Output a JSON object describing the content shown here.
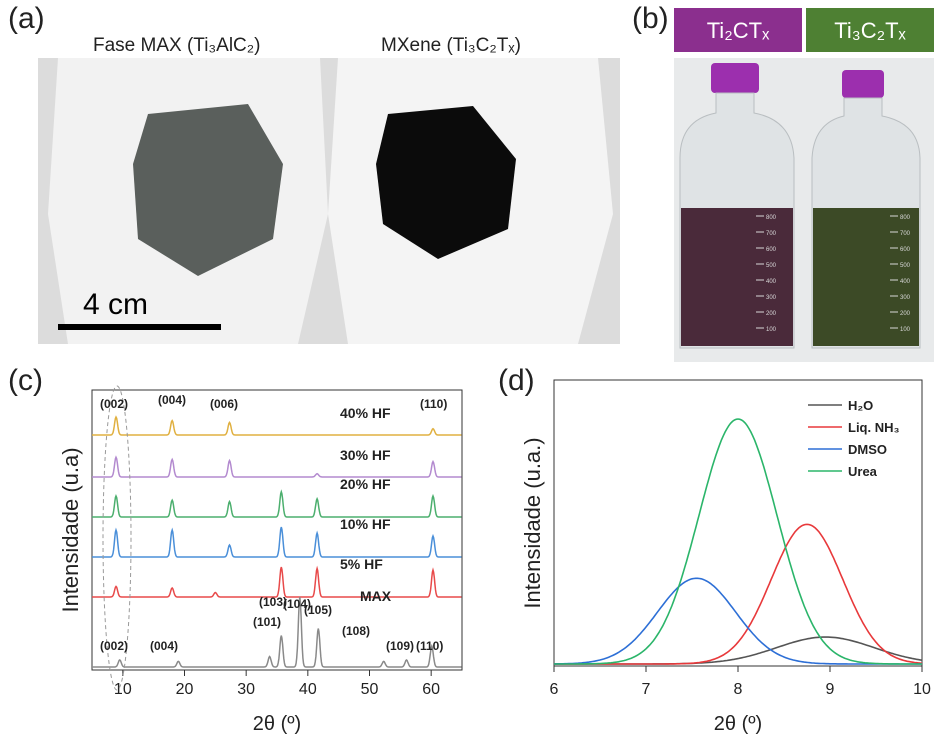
{
  "panel_a": {
    "letter": "(a)",
    "label_max": "Fase MAX (Ti₃AlC₂)",
    "label_mxene": "MXene (Ti₃C₂Tₓ)",
    "scale_bar": "4 cm"
  },
  "panel_b": {
    "letter": "(b)",
    "label_ti2": "Ti₂CTₓ",
    "label_ti3": "Ti₃C₂Tₓ",
    "bottle_marks": [
      "100",
      "200",
      "300",
      "400",
      "500",
      "600",
      "700",
      "800"
    ],
    "colors": {
      "ti2_tab": "#8b2f8e",
      "ti3_tab": "#4e8033",
      "cap": "#9c2fae"
    }
  },
  "panel_c": {
    "letter": "(c)",
    "ylabel": "Intensidade (u.a)",
    "xlabel": "2θ (º)",
    "xticks": [
      "10",
      "20",
      "30",
      "40",
      "50",
      "60"
    ],
    "series_labels": [
      "40% HF",
      "30% HF",
      "20% HF",
      "10% HF",
      "5% HF",
      "MAX"
    ],
    "top_peaks": [
      "(002)",
      "(004)",
      "(006)",
      "(110)"
    ],
    "max_peaks": [
      "(002)",
      "(004)",
      "(101)",
      "(103)",
      "(104)",
      "(105)",
      "(108)",
      "(109)",
      "(110)"
    ]
  },
  "panel_d": {
    "letter": "(d)",
    "ylabel": "Intensidade (u.a.)",
    "xlabel": "2θ (º)",
    "xticks": [
      "6",
      "7",
      "8",
      "9",
      "10"
    ],
    "legend": [
      "H₂O",
      "Liq. NH₃",
      "DMSO",
      "Urea"
    ]
  },
  "chart_data": [
    {
      "type": "line",
      "panel": "(c)",
      "xlabel": "2θ (º)",
      "ylabel": "Intensidade (u.a)",
      "xlim": [
        5,
        65
      ],
      "series": [
        {
          "name": "40% HF",
          "color": "#e0b040",
          "peaks": [
            [
              8.9,
              1.0
            ],
            [
              18.0,
              0.8
            ],
            [
              27.3,
              0.7
            ],
            [
              60.3,
              0.35
            ]
          ]
        },
        {
          "name": "30% HF",
          "color": "#b38acf",
          "peaks": [
            [
              8.9,
              0.9
            ],
            [
              18.0,
              0.8
            ],
            [
              27.3,
              0.75
            ],
            [
              41.5,
              0.15
            ],
            [
              60.3,
              0.7
            ]
          ]
        },
        {
          "name": "20% HF",
          "color": "#4caf6e",
          "peaks": [
            [
              8.9,
              0.75
            ],
            [
              18.0,
              0.6
            ],
            [
              27.3,
              0.55
            ],
            [
              35.7,
              0.9
            ],
            [
              41.5,
              0.65
            ],
            [
              60.3,
              0.75
            ]
          ]
        },
        {
          "name": "10% HF",
          "color": "#4a8fd9",
          "peaks": [
            [
              8.9,
              0.9
            ],
            [
              18.0,
              0.9
            ],
            [
              27.3,
              0.4
            ],
            [
              35.7,
              1.0
            ],
            [
              41.5,
              0.8
            ],
            [
              60.3,
              0.7
            ]
          ]
        },
        {
          "name": "5% HF",
          "color": "#e84a4a",
          "peaks": [
            [
              8.9,
              0.35
            ],
            [
              18.0,
              0.3
            ],
            [
              25.0,
              0.15
            ],
            [
              35.7,
              1.0
            ],
            [
              41.5,
              0.95
            ],
            [
              60.3,
              0.9
            ]
          ]
        },
        {
          "name": "MAX",
          "color": "#8a8a8a",
          "peaks": [
            [
              9.5,
              0.1
            ],
            [
              19.0,
              0.08
            ],
            [
              33.8,
              0.15
            ],
            [
              35.7,
              0.45
            ],
            [
              38.7,
              1.0
            ],
            [
              41.7,
              0.55
            ],
            [
              52.3,
              0.08
            ],
            [
              56.0,
              0.1
            ],
            [
              60.1,
              0.3
            ]
          ]
        }
      ]
    },
    {
      "type": "line",
      "panel": "(d)",
      "xlabel": "2θ (º)",
      "ylabel": "Intensidade (u.a.)",
      "xlim": [
        6,
        10
      ],
      "series": [
        {
          "name": "H₂O",
          "color": "#555555",
          "center": 8.95,
          "height": 0.11,
          "width": 0.75
        },
        {
          "name": "Liq. NH₃",
          "color": "#e8393b",
          "center": 8.75,
          "height": 0.57,
          "width": 0.55
        },
        {
          "name": "DMSO",
          "color": "#2d6fd6",
          "center": 7.55,
          "height": 0.35,
          "width": 0.6
        },
        {
          "name": "Urea",
          "color": "#2bb56a",
          "center": 8.0,
          "height": 1.0,
          "width": 0.6
        }
      ]
    }
  ]
}
